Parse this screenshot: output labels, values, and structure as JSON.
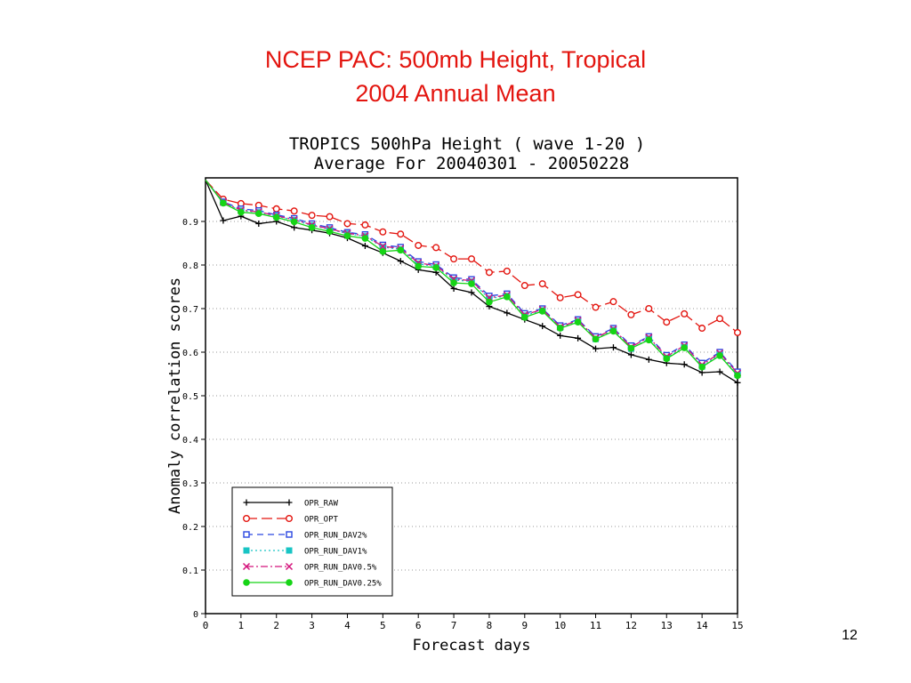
{
  "slide": {
    "title_line1": "NCEP PAC: 500mb Height, Tropical",
    "title_line2": "2004 Annual Mean",
    "page_number": "12"
  },
  "chart_data": {
    "type": "line",
    "title": "TROPICS 500hPa Height ( wave 1-20 )",
    "subtitle": "Average For 20040301 - 20050228",
    "xlabel": "Forecast days",
    "ylabel": "Anomaly correlation scores",
    "xlim": [
      0,
      15
    ],
    "ylim": [
      0,
      1
    ],
    "x_ticks": [
      0,
      1,
      2,
      3,
      4,
      5,
      6,
      7,
      8,
      9,
      10,
      11,
      12,
      13,
      14,
      15
    ],
    "y_ticks": [
      0,
      0.1,
      0.2,
      0.3,
      0.4,
      0.5,
      0.6,
      0.7,
      0.8,
      0.9
    ],
    "grid": "dotted horizontal",
    "legend_position": "lower-left",
    "x": [
      0,
      0.5,
      1,
      1.5,
      2,
      2.5,
      3,
      3.5,
      4,
      4.5,
      5,
      5.5,
      6,
      6.5,
      7,
      7.5,
      8,
      8.5,
      9,
      9.5,
      10,
      10.5,
      11,
      11.5,
      12,
      12.5,
      13,
      13.5,
      14,
      14.5,
      15
    ],
    "series": [
      {
        "name": "OPR_RAW",
        "color": "#000000",
        "dash": "solid",
        "marker": "plus",
        "values": [
          0.995,
          0.902,
          0.912,
          0.895,
          0.9,
          0.886,
          0.88,
          0.873,
          0.862,
          0.844,
          0.828,
          0.809,
          0.789,
          0.783,
          0.746,
          0.737,
          0.705,
          0.69,
          0.675,
          0.66,
          0.638,
          0.632,
          0.608,
          0.611,
          0.594,
          0.583,
          0.575,
          0.572,
          0.553,
          0.555,
          0.53
        ]
      },
      {
        "name": "OPR_OPT",
        "color": "#e3150f",
        "dash": "longdash",
        "marker": "circle",
        "values": [
          0.995,
          0.951,
          0.941,
          0.937,
          0.929,
          0.924,
          0.914,
          0.911,
          0.895,
          0.892,
          0.876,
          0.871,
          0.845,
          0.84,
          0.814,
          0.814,
          0.783,
          0.786,
          0.753,
          0.757,
          0.725,
          0.732,
          0.703,
          0.716,
          0.686,
          0.7,
          0.669,
          0.688,
          0.655,
          0.677,
          0.645
        ]
      },
      {
        "name": "OPR_RUN_DAV2%",
        "color": "#2b47e0",
        "dash": "dash",
        "marker": "square",
        "values": [
          0.995,
          0.945,
          0.929,
          0.925,
          0.915,
          0.907,
          0.895,
          0.886,
          0.875,
          0.87,
          0.846,
          0.841,
          0.808,
          0.801,
          0.771,
          0.767,
          0.729,
          0.734,
          0.689,
          0.7,
          0.661,
          0.675,
          0.636,
          0.655,
          0.615,
          0.636,
          0.593,
          0.617,
          0.575,
          0.6,
          0.555
        ]
      },
      {
        "name": "OPR_RUN_DAV1%",
        "color": "#18c4c4",
        "dash": "dot",
        "marker": "filled-square",
        "values": [
          0.995,
          0.943,
          0.925,
          0.921,
          0.912,
          0.903,
          0.891,
          0.882,
          0.872,
          0.866,
          0.841,
          0.836,
          0.803,
          0.796,
          0.766,
          0.762,
          0.723,
          0.729,
          0.684,
          0.696,
          0.656,
          0.671,
          0.63,
          0.651,
          0.608,
          0.631,
          0.587,
          0.612,
          0.567,
          0.595,
          0.548
        ]
      },
      {
        "name": "OPR_RUN_DAV0.5%",
        "color": "#d4147c",
        "dash": "dashdot",
        "marker": "cross",
        "values": [
          0.995,
          0.944,
          0.926,
          0.922,
          0.913,
          0.904,
          0.892,
          0.883,
          0.873,
          0.867,
          0.843,
          0.838,
          0.805,
          0.798,
          0.768,
          0.764,
          0.725,
          0.731,
          0.686,
          0.698,
          0.658,
          0.673,
          0.633,
          0.653,
          0.612,
          0.634,
          0.59,
          0.615,
          0.571,
          0.598,
          0.552
        ]
      },
      {
        "name": "OPR_RUN_DAV0.25%",
        "color": "#16d416",
        "dash": "solid",
        "marker": "filled-circle",
        "values": [
          0.995,
          0.942,
          0.921,
          0.918,
          0.909,
          0.899,
          0.886,
          0.877,
          0.867,
          0.861,
          0.831,
          0.834,
          0.797,
          0.794,
          0.759,
          0.757,
          0.715,
          0.727,
          0.68,
          0.694,
          0.655,
          0.669,
          0.63,
          0.648,
          0.609,
          0.628,
          0.585,
          0.61,
          0.566,
          0.592,
          0.546
        ]
      }
    ]
  }
}
